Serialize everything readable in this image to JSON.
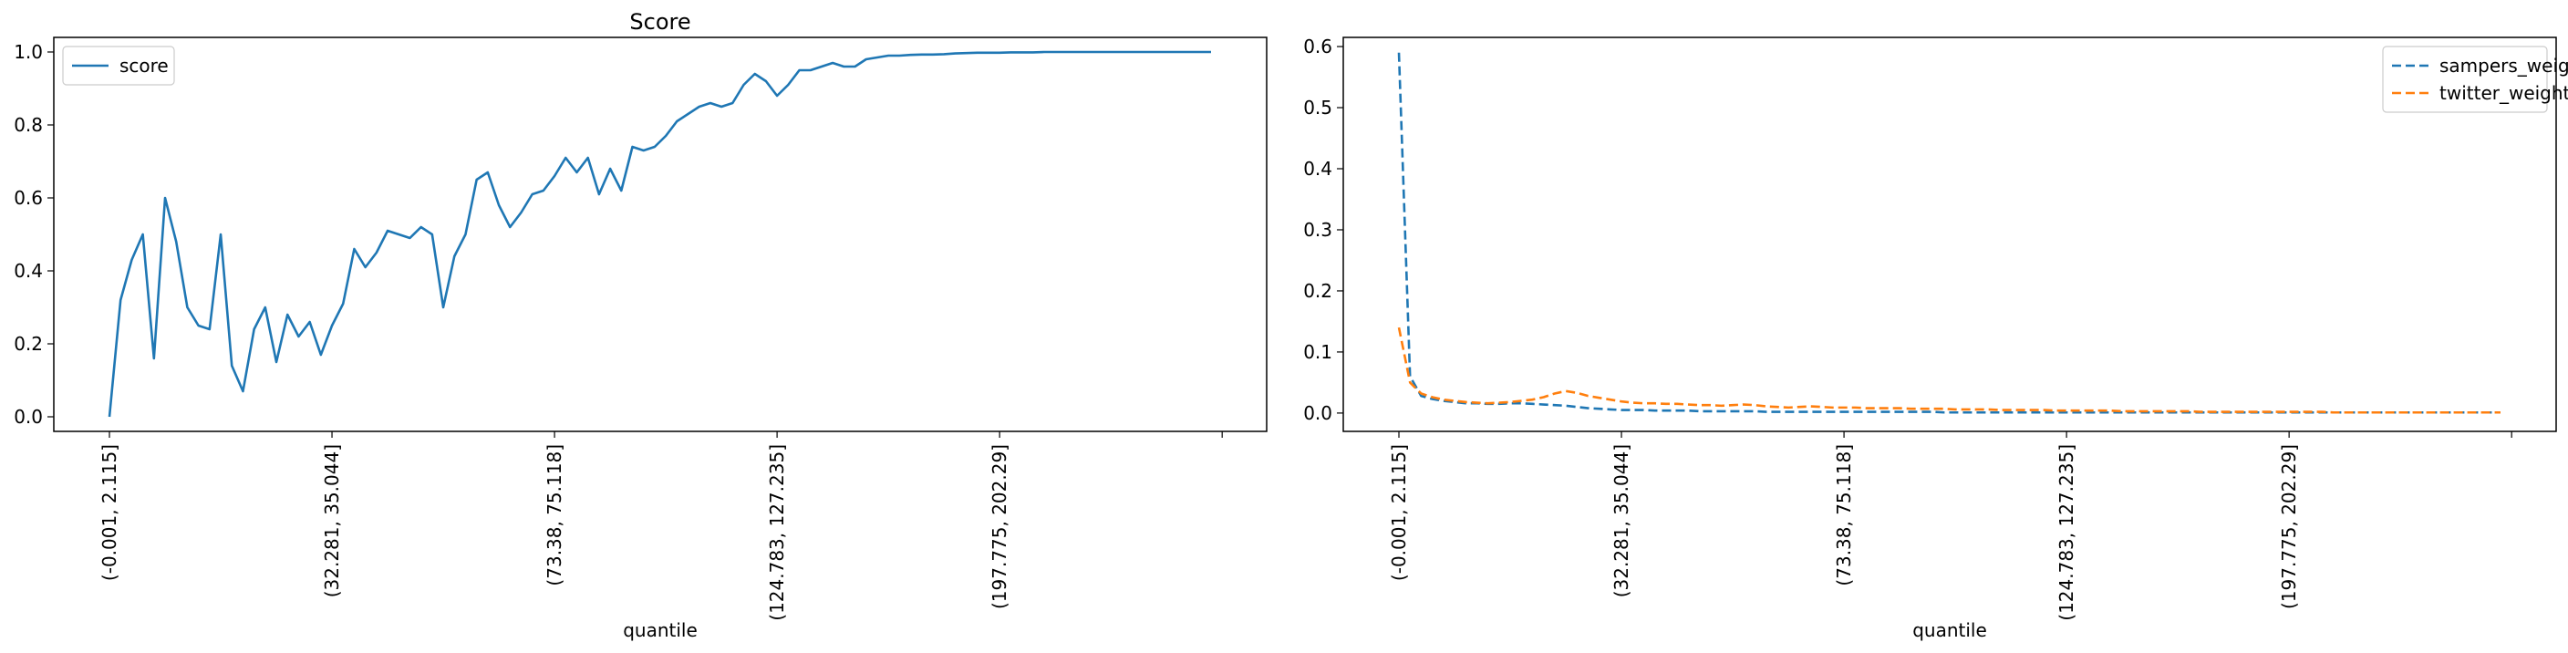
{
  "chart_data": [
    {
      "type": "line",
      "title": "Score",
      "xlabel": "quantile",
      "ylabel": "",
      "ylim": [
        -0.04,
        1.04
      ],
      "yticks": [
        0.0,
        0.2,
        0.4,
        0.6,
        0.8,
        1.0
      ],
      "ytick_labels": [
        "0.0",
        "0.2",
        "0.4",
        "0.6",
        "0.8",
        "1.0"
      ],
      "xtick_positions": [
        0,
        20,
        40,
        60,
        80,
        100
      ],
      "xtick_labels": [
        "(-0.001, 2.115]",
        "(32.281, 35.044]",
        "(73.38, 75.118]",
        "(124.783, 127.235]",
        "(197.775, 202.29]",
        ""
      ],
      "xlim": [
        -5,
        104
      ],
      "legend_position": "upper left",
      "series": [
        {
          "name": "score",
          "color": "#1f77b4",
          "style": "solid",
          "values": [
            0.0,
            0.32,
            0.43,
            0.5,
            0.16,
            0.6,
            0.48,
            0.3,
            0.25,
            0.24,
            0.5,
            0.14,
            0.07,
            0.24,
            0.3,
            0.15,
            0.28,
            0.22,
            0.26,
            0.17,
            0.25,
            0.31,
            0.46,
            0.41,
            0.45,
            0.51,
            0.5,
            0.49,
            0.52,
            0.5,
            0.3,
            0.44,
            0.5,
            0.65,
            0.67,
            0.58,
            0.52,
            0.56,
            0.61,
            0.62,
            0.66,
            0.71,
            0.67,
            0.71,
            0.61,
            0.68,
            0.62,
            0.74,
            0.73,
            0.74,
            0.77,
            0.81,
            0.83,
            0.85,
            0.86,
            0.85,
            0.86,
            0.91,
            0.94,
            0.92,
            0.88,
            0.91,
            0.95,
            0.95,
            0.96,
            0.97,
            0.96,
            0.96,
            0.98,
            0.985,
            0.99,
            0.99,
            0.992,
            0.993,
            0.993,
            0.994,
            0.996,
            0.997,
            0.998,
            0.998,
            0.998,
            0.999,
            0.999,
            0.999,
            1.0,
            1.0,
            1.0,
            1.0,
            1.0,
            1.0,
            1.0,
            1.0,
            1.0,
            1.0,
            1.0,
            1.0,
            1.0,
            1.0,
            1.0,
            1.0
          ]
        }
      ]
    },
    {
      "type": "line",
      "title": "",
      "xlabel": "quantile",
      "ylabel": "",
      "ylim": [
        -0.03,
        0.615
      ],
      "yticks": [
        0.0,
        0.1,
        0.2,
        0.3,
        0.4,
        0.5,
        0.6
      ],
      "ytick_labels": [
        "0.0",
        "0.1",
        "0.2",
        "0.3",
        "0.4",
        "0.5",
        "0.6"
      ],
      "xtick_positions": [
        0,
        20,
        40,
        60,
        80,
        100
      ],
      "xtick_labels": [
        "(-0.001, 2.115]",
        "(32.281, 35.044]",
        "(73.38, 75.118]",
        "(124.783, 127.235]",
        "(197.775, 202.29]",
        ""
      ],
      "xlim": [
        -5,
        104
      ],
      "legend_position": "upper right",
      "series": [
        {
          "name": "sampers_weight",
          "color": "#1f77b4",
          "style": "dashed",
          "values": [
            0.59,
            0.06,
            0.028,
            0.023,
            0.02,
            0.018,
            0.016,
            0.016,
            0.015,
            0.015,
            0.016,
            0.016,
            0.015,
            0.014,
            0.013,
            0.012,
            0.01,
            0.008,
            0.007,
            0.006,
            0.005,
            0.005,
            0.005,
            0.004,
            0.004,
            0.004,
            0.004,
            0.003,
            0.003,
            0.003,
            0.003,
            0.003,
            0.003,
            0.002,
            0.002,
            0.002,
            0.002,
            0.002,
            0.002,
            0.002,
            0.002,
            0.002,
            0.002,
            0.002,
            0.002,
            0.002,
            0.002,
            0.002,
            0.002,
            0.001,
            0.001,
            0.001,
            0.001,
            0.001,
            0.001,
            0.001,
            0.001,
            0.001,
            0.001,
            0.001,
            0.001,
            0.001,
            0.001,
            0.001,
            0.001,
            0.001,
            0.001,
            0.001,
            0.001,
            0.001,
            0.001,
            0.001,
            0.001,
            0.001,
            0.001,
            0.001,
            0.001,
            0.001,
            0.001,
            0.001,
            0.001,
            0.001,
            0.001,
            0.001,
            0.001,
            0.001,
            0.001,
            0.001,
            0.001,
            0.001,
            0.001,
            0.001,
            0.001,
            0.001,
            0.001,
            0.001,
            0.001,
            0.001,
            0.001,
            0.001
          ]
        },
        {
          "name": "twitter_weight",
          "color": "#ff7f0e",
          "style": "dashed",
          "values": [
            0.14,
            0.05,
            0.032,
            0.026,
            0.022,
            0.02,
            0.018,
            0.017,
            0.016,
            0.017,
            0.018,
            0.02,
            0.022,
            0.026,
            0.032,
            0.036,
            0.033,
            0.028,
            0.025,
            0.022,
            0.019,
            0.017,
            0.016,
            0.016,
            0.015,
            0.015,
            0.014,
            0.013,
            0.013,
            0.012,
            0.013,
            0.014,
            0.013,
            0.011,
            0.01,
            0.009,
            0.01,
            0.011,
            0.01,
            0.009,
            0.009,
            0.009,
            0.008,
            0.008,
            0.008,
            0.008,
            0.007,
            0.007,
            0.007,
            0.007,
            0.006,
            0.006,
            0.006,
            0.006,
            0.005,
            0.005,
            0.005,
            0.005,
            0.005,
            0.004,
            0.004,
            0.004,
            0.004,
            0.004,
            0.004,
            0.003,
            0.003,
            0.003,
            0.003,
            0.003,
            0.003,
            0.003,
            0.002,
            0.002,
            0.002,
            0.002,
            0.002,
            0.002,
            0.002,
            0.002,
            0.002,
            0.002,
            0.002,
            0.002,
            0.001,
            0.001,
            0.001,
            0.001,
            0.001,
            0.001,
            0.001,
            0.001,
            0.001,
            0.001,
            0.001,
            0.001,
            0.001,
            0.001,
            0.001,
            0.001
          ]
        }
      ]
    }
  ]
}
